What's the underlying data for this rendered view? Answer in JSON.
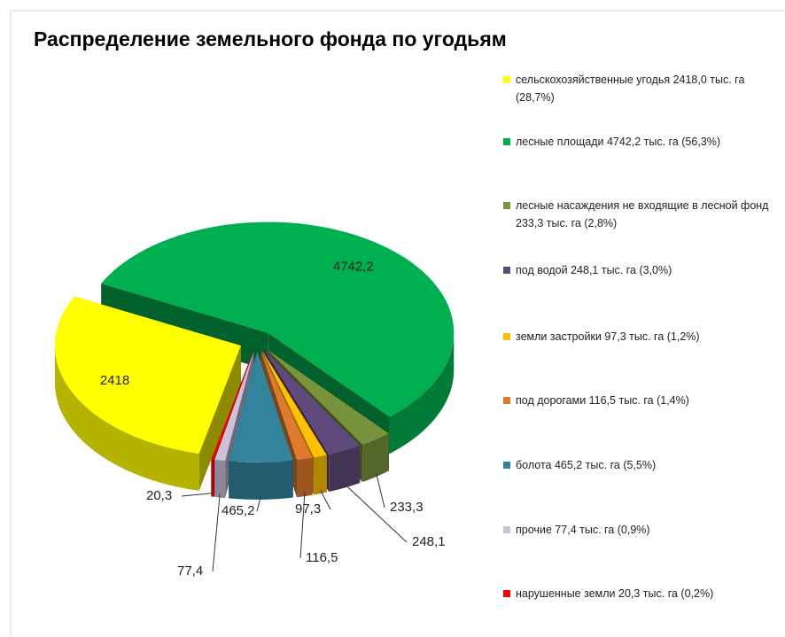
{
  "chart_data": {
    "type": "pie",
    "title": "Распределение земельного фонда по угодьям",
    "categories": [
      "сельскохозяйственные угодья 2418,0 тыс. га (28,7%)",
      "лесные площади 4742,2 тыс. га (56,3%)",
      "лесные насаждения не входящие в лесной фонд 233,3 тыс. га (2,8%)",
      "под водой 248,1 тыс. га (3,0%)",
      "земли застройки 97,3 тыс. га (1,2%)",
      "под дорогами 116,5 тыс. га (1,4%)",
      "болота 465,2 тыс. га (5,5%)",
      "прочие 77,4 тыс. га (0,9%)",
      "нарушенные земли 20,3 тыс. га (0,2%)"
    ],
    "values": [
      2418,
      4742.2,
      233.3,
      248.1,
      97.3,
      116.5,
      465.2,
      77.4,
      20.3
    ],
    "value_labels": [
      "2418",
      "4742,2",
      "233,3",
      "248,1",
      "97,3",
      "116,5",
      "465,2",
      "77,4",
      "20,3"
    ],
    "colors": [
      "#ffff00",
      "#00b050",
      "#77933c",
      "#604a7b",
      "#ffc000",
      "#e07b2e",
      "#31849b",
      "#ccc0da",
      "#ff0000"
    ],
    "legend": "right"
  }
}
